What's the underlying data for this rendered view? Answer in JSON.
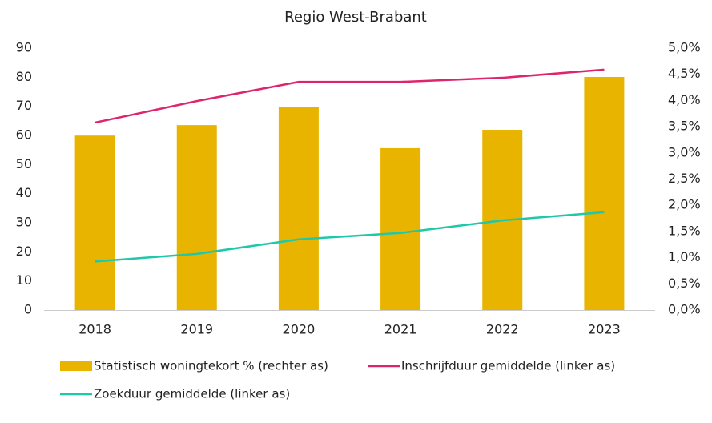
{
  "chart_data": {
    "type": "bar_line",
    "title": "Regio West-Brabant",
    "categories": [
      "2018",
      "2019",
      "2020",
      "2021",
      "2022",
      "2023"
    ],
    "series": [
      {
        "name": "Statistisch woningtekort % (rechter as)",
        "type": "bar",
        "axis": "y2",
        "color": "#e8b400",
        "values": [
          3.33,
          3.53,
          3.87,
          3.09,
          3.44,
          4.45
        ]
      },
      {
        "name": "Inschrijfduur gemiddelde (linker as)",
        "type": "line",
        "axis": "y",
        "color": "#e0246c",
        "values": [
          64.4,
          71.8,
          78.4,
          78.4,
          79.8,
          82.6
        ]
      },
      {
        "name": "Zoekduur gemiddelde (linker as)",
        "type": "line",
        "axis": "y",
        "color": "#1ec8a8",
        "values": [
          16.7,
          19.3,
          24.3,
          26.5,
          30.8,
          33.6
        ]
      }
    ],
    "ylim": [
      0,
      90
    ],
    "yticks": [
      0,
      10,
      20,
      30,
      40,
      50,
      60,
      70,
      80,
      90
    ],
    "y2lim": [
      0,
      5
    ],
    "y2ticks": [
      {
        "value": 0,
        "label": "0,0%"
      },
      {
        "value": 0.5,
        "label": "0,5%"
      },
      {
        "value": 1,
        "label": "1,0%"
      },
      {
        "value": 1.5,
        "label": "1,5%"
      },
      {
        "value": 2,
        "label": "2,0%"
      },
      {
        "value": 2.5,
        "label": "2,5%"
      },
      {
        "value": 3,
        "label": "3,0%"
      },
      {
        "value": 3.5,
        "label": "3,5%"
      },
      {
        "value": 4,
        "label": "4,0%"
      },
      {
        "value": 4.5,
        "label": "4,5%"
      },
      {
        "value": 5,
        "label": "5,0%"
      }
    ],
    "grid": false
  }
}
